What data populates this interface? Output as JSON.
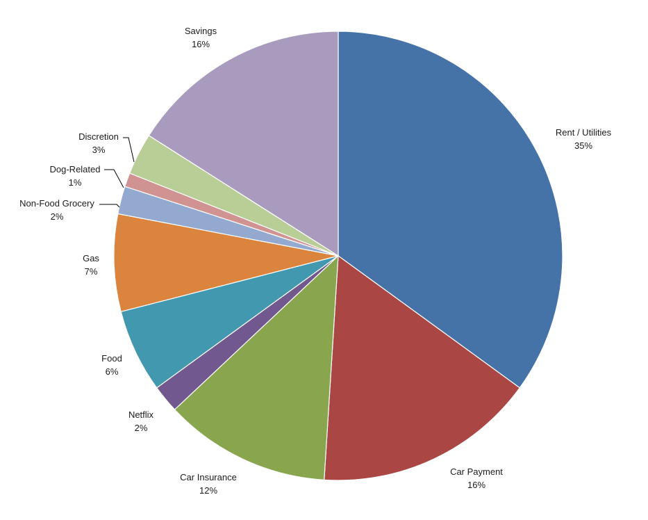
{
  "chart_data": {
    "type": "pie",
    "title": "",
    "start_angle_deg": 0,
    "direction": "clockwise",
    "slices": [
      {
        "label": "Rent / Utilities",
        "value": 35,
        "percent_label": "35%",
        "color": "#4572A7"
      },
      {
        "label": "Car Payment",
        "value": 16,
        "percent_label": "16%",
        "color": "#AA4643"
      },
      {
        "label": "Car Insurance",
        "value": 12,
        "percent_label": "12%",
        "color": "#89A54E"
      },
      {
        "label": "Netflix",
        "value": 2,
        "percent_label": "2%",
        "color": "#71588F"
      },
      {
        "label": "Food",
        "value": 6,
        "percent_label": "6%",
        "color": "#4198AF"
      },
      {
        "label": "Gas",
        "value": 7,
        "percent_label": "7%",
        "color": "#DB843D"
      },
      {
        "label": "Non-Food Grocery",
        "value": 2,
        "percent_label": "2%",
        "color": "#93A9CF"
      },
      {
        "label": "Dog-Related",
        "value": 1,
        "percent_label": "1%",
        "color": "#D19392"
      },
      {
        "label": "Discretion",
        "value": 3,
        "percent_label": "3%",
        "color": "#B9CD96"
      },
      {
        "label": "Savings",
        "value": 16,
        "percent_label": "16%",
        "color": "#A99BBD"
      }
    ]
  }
}
